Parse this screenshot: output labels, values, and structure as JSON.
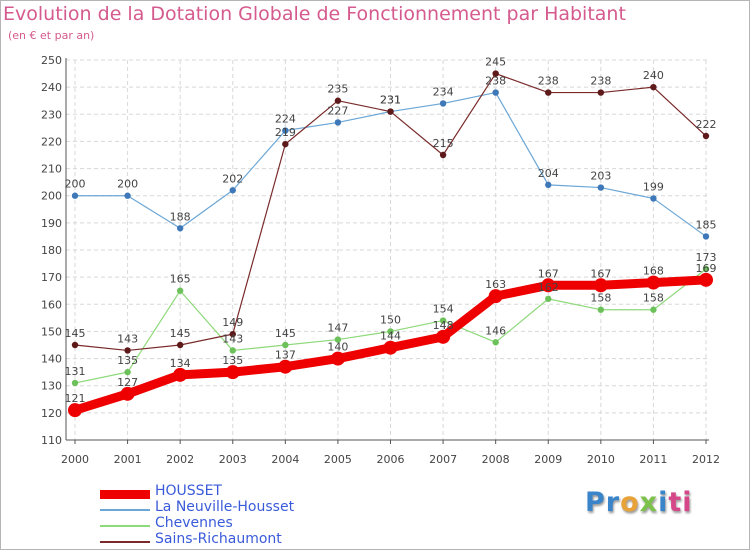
{
  "title": "Evolution de la Dotation Globale de Fonctionnement par Habitant",
  "subtitle": "(en € et par an)",
  "logo": {
    "parts": [
      "Pr",
      "o",
      "x",
      "i",
      "ti"
    ],
    "colors": [
      "#3a84c9",
      "#e8a23a",
      "#7cc24a",
      "#3a84c9",
      "#d6478a"
    ]
  },
  "chart_data": {
    "type": "line",
    "title": "Evolution de la Dotation Globale de Fonctionnement par Habitant",
    "subtitle": "(en € et par an)",
    "xlabel": "",
    "ylabel": "",
    "ylim": [
      110,
      250
    ],
    "y_ticks": [
      110,
      120,
      130,
      140,
      150,
      160,
      170,
      180,
      190,
      200,
      210,
      220,
      230,
      240,
      250
    ],
    "grid": true,
    "categories": [
      "2000",
      "2001",
      "2002",
      "2003",
      "2004",
      "2005",
      "2006",
      "2007",
      "2008",
      "2009",
      "2010",
      "2011",
      "2012"
    ],
    "series": [
      {
        "name": "La Neuville-Housset",
        "color": "#6aa6d6",
        "marker": "#3f78b8",
        "values": [
          200,
          200,
          188,
          202,
          224,
          227,
          231,
          234,
          238,
          204,
          203,
          199,
          185
        ]
      },
      {
        "name": "Chevennes",
        "color": "#8ed97a",
        "marker": "#6cc15a",
        "values": [
          131,
          135,
          165,
          143,
          145,
          147,
          150,
          154,
          146,
          162,
          158,
          158,
          173
        ]
      },
      {
        "name": "Sains-Richaumont",
        "color": "#7a2a2a",
        "marker": "#5e1a1a",
        "values": [
          145,
          143,
          145,
          149,
          219,
          235,
          231,
          215,
          245,
          238,
          238,
          240,
          222
        ]
      },
      {
        "name": "HOUSSET",
        "color": "#ee0000",
        "marker": "#ee0000",
        "values": [
          121,
          127,
          134,
          135,
          137,
          140,
          144,
          148,
          163,
          167,
          167,
          168,
          169
        ]
      }
    ]
  }
}
